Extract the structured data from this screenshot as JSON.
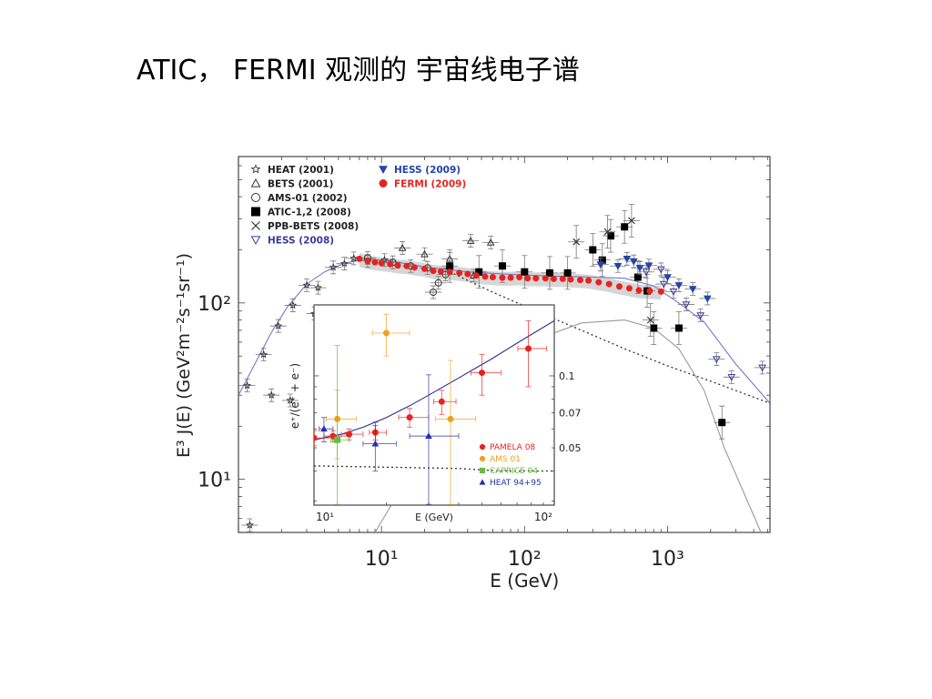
{
  "slide": {
    "title": "ATIC， FERMI 观测的 宇宙线电子谱"
  },
  "chart_data": [
    {
      "id": "main",
      "type": "scatter",
      "title": "",
      "xlabel": "E (GeV)",
      "ylabel": "E³ J(E) (GeV²m⁻²s⁻¹sr⁻¹)",
      "xscale": "log",
      "yscale": "log",
      "xlim": [
        1.0,
        5200
      ],
      "ylim": [
        5.0,
        676
      ],
      "xticks": [
        {
          "value": 10,
          "label": "10¹"
        },
        {
          "value": 100,
          "label": "10²"
        },
        {
          "value": 1000,
          "label": "10³"
        }
      ],
      "yticks": [
        {
          "value": 10,
          "label": "10¹"
        },
        {
          "value": 100,
          "label": "10²"
        }
      ],
      "legend_placement": "top-left",
      "series": [
        {
          "name": "HEAT (2001)",
          "marker": "star",
          "color": "#333333",
          "filled": false,
          "points": [
            [
              1.15,
              34
            ],
            [
              1.5,
              51
            ],
            [
              1.9,
              74
            ],
            [
              2.4,
              97
            ],
            [
              3.0,
              126
            ],
            [
              3.6,
              122
            ],
            [
              4.6,
              159
            ],
            [
              5.5,
              167
            ],
            [
              6.4,
              179
            ],
            [
              8.0,
              173
            ],
            [
              10.5,
              175
            ],
            [
              1.2,
              5.5
            ],
            [
              1.7,
              30
            ],
            [
              2.3,
              28
            ],
            [
              3.4,
              87
            ]
          ]
        },
        {
          "name": "BETS (2001)",
          "marker": "triangle",
          "color": "#333333",
          "filled": false,
          "points": [
            [
              14,
              205
            ],
            [
              20,
              189
            ],
            [
              30,
              178
            ],
            [
              42,
              225
            ],
            [
              58,
              220
            ],
            [
              44,
              143
            ]
          ]
        },
        {
          "name": "AMS-01 (2002)",
          "marker": "circle",
          "color": "#333333",
          "filled": false,
          "points": [
            [
              8,
              180
            ],
            [
              12,
              170
            ],
            [
              16,
              162
            ],
            [
              21,
              158
            ],
            [
              28,
              145
            ],
            [
              23,
              115
            ],
            [
              25,
              130
            ]
          ]
        },
        {
          "name": "ATIC-1,2 (2008)",
          "marker": "square",
          "color": "#000000",
          "filled": true,
          "points": [
            [
              30,
              162
            ],
            [
              48,
              150
            ],
            [
              70,
              162
            ],
            [
              100,
              150
            ],
            [
              150,
              148
            ],
            [
              200,
              148
            ],
            [
              300,
              200
            ],
            [
              400,
              240
            ],
            [
              500,
              270
            ],
            [
              350,
              175
            ],
            [
              620,
              140
            ],
            [
              800,
              72
            ],
            [
              1200,
              72
            ],
            [
              2400,
              21
            ],
            [
              720,
              117
            ]
          ]
        },
        {
          "name": "PPB-BETS (2008)",
          "marker": "x",
          "color": "#333333",
          "filled": false,
          "points": [
            [
              230,
              222
            ],
            [
              380,
              253
            ],
            [
              560,
              293
            ],
            [
              760,
              80
            ]
          ]
        },
        {
          "name": "HESS (2008)",
          "marker": "triangle-down",
          "color": "#3a3aa0",
          "filled": false,
          "points": [
            [
              710,
              150
            ],
            [
              940,
              128
            ],
            [
              1100,
              116
            ],
            [
              1350,
              98
            ],
            [
              1700,
              85
            ],
            [
              2200,
              48
            ],
            [
              2800,
              38
            ],
            [
              4600,
              43
            ],
            [
              900,
              155
            ]
          ]
        },
        {
          "name": "HESS (2009)",
          "marker": "triangle-down",
          "color": "#2244aa",
          "filled": true,
          "points": [
            [
              340,
              165
            ],
            [
              450,
              162
            ],
            [
              520,
              178
            ],
            [
              580,
              172
            ],
            [
              640,
              158
            ],
            [
              740,
              163
            ],
            [
              1000,
              140
            ],
            [
              1200,
              126
            ],
            [
              1500,
              120
            ],
            [
              1900,
              106
            ]
          ]
        },
        {
          "name": "FERMI (2009)",
          "marker": "circle",
          "color": "#e8231e",
          "filled": true,
          "points": [
            [
              7,
              178
            ],
            [
              8,
              173
            ],
            [
              9,
              170
            ],
            [
              10,
              168
            ],
            [
              11.5,
              166
            ],
            [
              13,
              163
            ],
            [
              15,
              162
            ],
            [
              17,
              159
            ],
            [
              20,
              156
            ],
            [
              23,
              152
            ],
            [
              26,
              151
            ],
            [
              30,
              150
            ],
            [
              35,
              148
            ],
            [
              40,
              146
            ],
            [
              46,
              143
            ],
            [
              53,
              141
            ],
            [
              60,
              140
            ],
            [
              70,
              139
            ],
            [
              80,
              139
            ],
            [
              92,
              140
            ],
            [
              105,
              138
            ],
            [
              120,
              138
            ],
            [
              140,
              138
            ],
            [
              160,
              137
            ],
            [
              185,
              137
            ],
            [
              210,
              136
            ],
            [
              245,
              135
            ],
            [
              280,
              134
            ],
            [
              330,
              131
            ],
            [
              390,
              128
            ],
            [
              460,
              124
            ],
            [
              540,
              121
            ],
            [
              630,
              118
            ],
            [
              750,
              117
            ],
            [
              900,
              116
            ]
          ]
        }
      ],
      "curves": [
        {
          "name": "model-total",
          "style": "solid",
          "color": "#7777cc",
          "points": [
            [
              1,
              30
            ],
            [
              1.3,
              45
            ],
            [
              1.7,
              68
            ],
            [
              2.2,
              95
            ],
            [
              3,
              128
            ],
            [
              4,
              150
            ],
            [
              5.5,
              168
            ],
            [
              8,
              178
            ],
            [
              12,
              172
            ],
            [
              20,
              160
            ],
            [
              40,
              150
            ],
            [
              80,
              145
            ],
            [
              150,
              142
            ],
            [
              300,
              140
            ],
            [
              500,
              138
            ],
            [
              800,
              125
            ],
            [
              1200,
              100
            ],
            [
              1800,
              78
            ],
            [
              3000,
              45
            ],
            [
              5200,
              27
            ]
          ]
        },
        {
          "name": "model-background",
          "style": "dotted",
          "color": "#333333",
          "points": [
            [
              30,
              150
            ],
            [
              60,
              115
            ],
            [
              120,
              90
            ],
            [
              250,
              70
            ],
            [
              500,
              55
            ],
            [
              1000,
              44
            ],
            [
              2000,
              36
            ],
            [
              5200,
              27
            ]
          ]
        },
        {
          "name": "model-extra-source",
          "style": "solid",
          "color": "#999999",
          "points": [
            [
              9,
              5
            ],
            [
              15,
              10
            ],
            [
              30,
              22
            ],
            [
              60,
              40
            ],
            [
              120,
              62
            ],
            [
              250,
              77
            ],
            [
              500,
              80
            ],
            [
              800,
              72
            ],
            [
              1200,
              55
            ],
            [
              1800,
              32
            ],
            [
              2500,
              15
            ],
            [
              3500,
              8
            ],
            [
              4500,
              5
            ]
          ]
        }
      ]
    },
    {
      "id": "inset",
      "type": "scatter",
      "xlabel": "E (GeV)",
      "ylabel": "e⁺/(e⁺ + e⁻)",
      "xscale": "log",
      "yscale": "log",
      "xlim": [
        10,
        100
      ],
      "ylim": [
        0.0288,
        0.198
      ],
      "xticks": [
        {
          "value": 10,
          "label": "10¹"
        },
        {
          "value": 100,
          "label": "10²"
        }
      ],
      "yticks": [
        {
          "value": 0.1,
          "label": "0.1"
        },
        {
          "value": 0.07,
          "label": "0.07"
        },
        {
          "value": 0.05,
          "label": "0.05"
        }
      ],
      "legend_placement": "bottom-right",
      "series": [
        {
          "name": "PAMELA 08",
          "marker": "circle",
          "color": "#e8231e",
          "points": [
            [
              10.0,
              0.055
            ],
            [
              12.0,
              0.056
            ],
            [
              14.0,
              0.057
            ],
            [
              18.0,
              0.058
            ],
            [
              25.0,
              0.067
            ],
            [
              34.0,
              0.078
            ],
            [
              50.0,
              0.103
            ],
            [
              78.0,
              0.13
            ]
          ],
          "errors": [
            [
              0.004,
              2
            ],
            [
              0.003,
              2
            ],
            [
              0.003,
              2
            ],
            [
              0.004,
              2
            ],
            [
              0.006,
              5
            ],
            [
              0.009,
              5
            ],
            [
              0.02,
              10
            ],
            [
              0.04,
              15
            ]
          ]
        },
        {
          "name": "AMS 01",
          "marker": "circle",
          "color": "#f0a020",
          "points": [
            [
              12.5,
              0.066
            ],
            [
              20.0,
              0.151
            ],
            [
              37.0,
              0.066
            ]
          ],
          "errors": [
            [
              0.021,
              2.5
            ],
            [
              0.03,
              5
            ],
            [
              0.05,
              10
            ]
          ]
        },
        {
          "name": "CAPRICE 94",
          "marker": "square",
          "color": "#66bb44",
          "points": [
            [
              12.5,
              0.054
            ]
          ],
          "errors": [
            [
              0.08,
              1.5
            ]
          ]
        },
        {
          "name": "HEAT 94+95",
          "marker": "triangle",
          "color": "#2233aa",
          "points": [
            [
              11.0,
              0.06
            ],
            [
              18.0,
              0.052
            ],
            [
              30.0,
              0.056
            ]
          ],
          "errors": [
            [
              0.007,
              1
            ],
            [
              0.012,
              4
            ],
            [
              0.045,
              10
            ]
          ]
        }
      ],
      "curves": [
        {
          "name": "model-positron-fraction",
          "style": "solid",
          "color": "#2a2a9a",
          "points": [
            [
              10,
              0.054
            ],
            [
              13,
              0.057
            ],
            [
              16,
              0.061
            ],
            [
              20,
              0.067
            ],
            [
              25,
              0.075
            ],
            [
              30,
              0.083
            ],
            [
              40,
              0.098
            ],
            [
              55,
              0.118
            ],
            [
              70,
              0.137
            ],
            [
              100,
              0.17
            ]
          ]
        },
        {
          "name": "model-secondary",
          "style": "dotted",
          "color": "#333333",
          "points": [
            [
              10,
              0.042
            ],
            [
              20,
              0.0415
            ],
            [
              40,
              0.041
            ],
            [
              60,
              0.04
            ],
            [
              100,
              0.04
            ]
          ]
        }
      ],
      "legend": [
        {
          "label": "PAMELA 08",
          "color": "#e8231e"
        },
        {
          "label": "AMS 01",
          "color": "#f0a020"
        },
        {
          "label": "CAPRICE 94",
          "color": "#66bb44"
        },
        {
          "label": "HEAT 94+95",
          "color": "#2233aa"
        }
      ]
    }
  ]
}
